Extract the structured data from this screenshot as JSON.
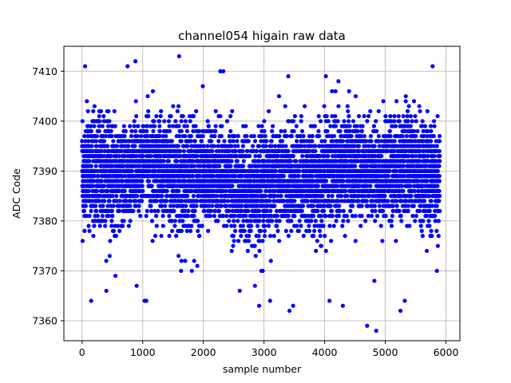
{
  "chart_data": {
    "type": "scatter",
    "title": "channel054 higain raw data",
    "xlabel": "sample number",
    "ylabel": "ADC Code",
    "xlim": [
      -300,
      6230
    ],
    "ylim": [
      7356,
      7415
    ],
    "xticks": [
      0,
      1000,
      2000,
      3000,
      4000,
      5000,
      6000
    ],
    "yticks": [
      7360,
      7370,
      7380,
      7390,
      7400,
      7410
    ],
    "grid": true,
    "series": [
      {
        "color": "#0000ff",
        "marker": "circle",
        "n_points": 5900,
        "x_range": [
          0,
          5899
        ],
        "typical_band": [
          7380,
          7400
        ],
        "center": 7389,
        "outliers": [
          {
            "x": 50,
            "y": 7411
          },
          {
            "x": 150,
            "y": 7364
          },
          {
            "x": 400,
            "y": 7366
          },
          {
            "x": 550,
            "y": 7369
          },
          {
            "x": 750,
            "y": 7411
          },
          {
            "x": 880,
            "y": 7412
          },
          {
            "x": 900,
            "y": 7367
          },
          {
            "x": 1030,
            "y": 7364
          },
          {
            "x": 1060,
            "y": 7364
          },
          {
            "x": 1600,
            "y": 7413
          },
          {
            "x": 1700,
            "y": 7372
          },
          {
            "x": 1900,
            "y": 7371
          },
          {
            "x": 2280,
            "y": 7410
          },
          {
            "x": 2330,
            "y": 7410
          },
          {
            "x": 2600,
            "y": 7366
          },
          {
            "x": 2850,
            "y": 7367
          },
          {
            "x": 2920,
            "y": 7363
          },
          {
            "x": 3100,
            "y": 7364
          },
          {
            "x": 3400,
            "y": 7409
          },
          {
            "x": 3420,
            "y": 7362
          },
          {
            "x": 3480,
            "y": 7363
          },
          {
            "x": 4020,
            "y": 7409
          },
          {
            "x": 4080,
            "y": 7364
          },
          {
            "x": 4300,
            "y": 7363
          },
          {
            "x": 4700,
            "y": 7359
          },
          {
            "x": 4850,
            "y": 7358
          },
          {
            "x": 4820,
            "y": 7368
          },
          {
            "x": 5250,
            "y": 7362
          },
          {
            "x": 5320,
            "y": 7364
          },
          {
            "x": 5780,
            "y": 7411
          },
          {
            "x": 5850,
            "y": 7370
          }
        ]
      }
    ]
  }
}
